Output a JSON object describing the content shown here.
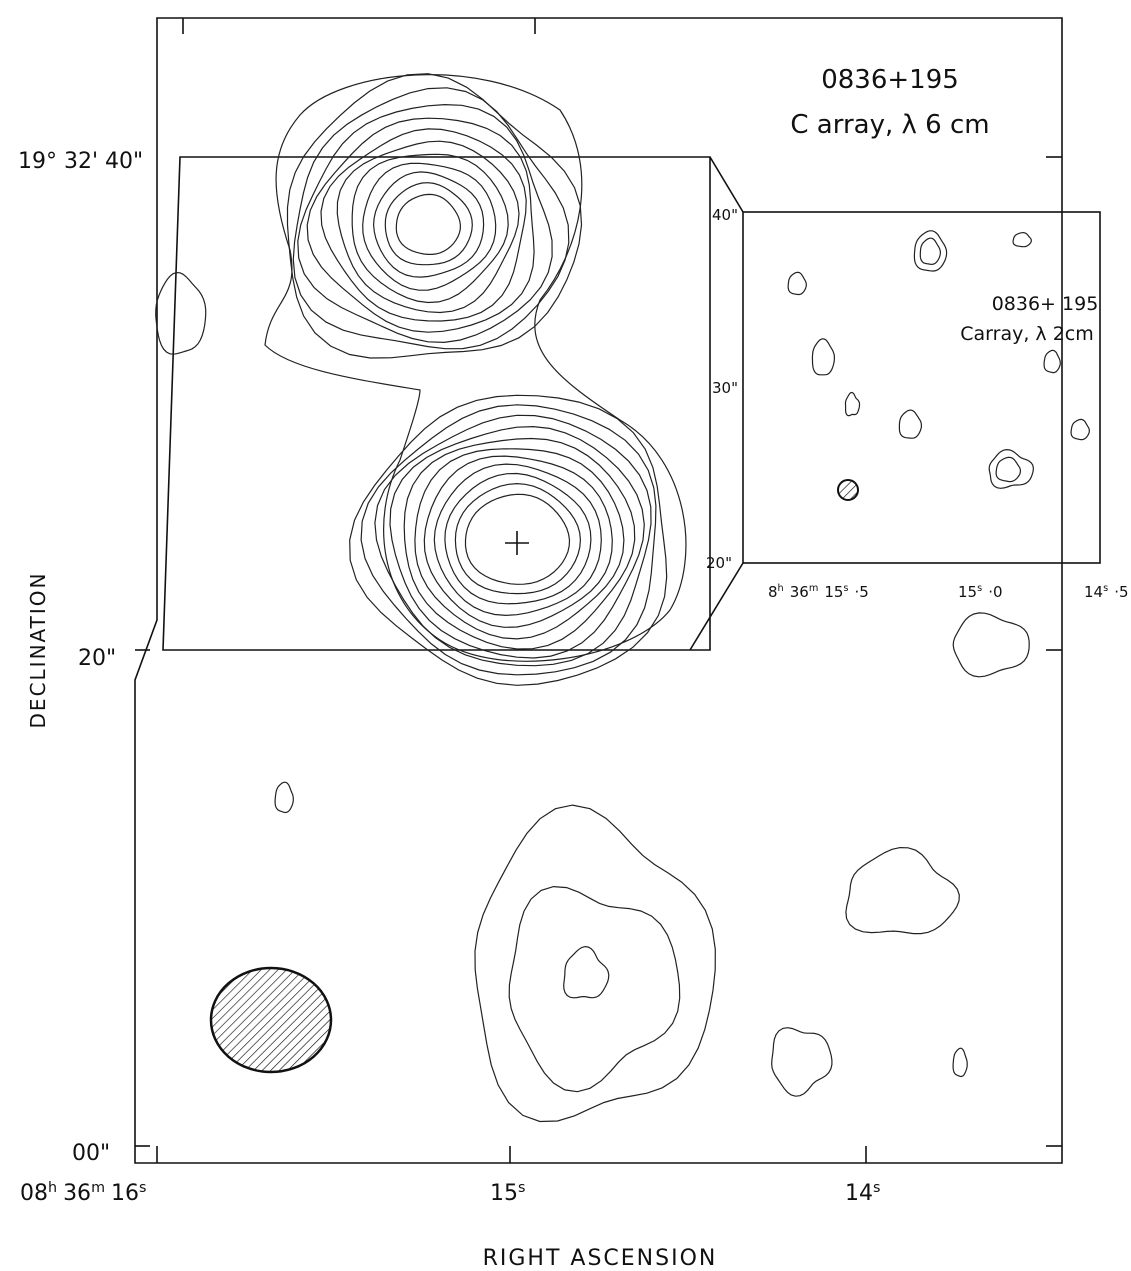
{
  "main_panel": {
    "title": "0836+195",
    "subtitle": "C array, λ 6 cm",
    "y_axis_label": "DECLINATION",
    "x_axis_label": "RIGHT ASCENSION",
    "dec_labels": [
      "19° 32' 40\"",
      "20\"",
      "00\""
    ],
    "ra_labels": [
      [
        [
          "08",
          "h"
        ],
        [
          "36",
          "m"
        ],
        [
          "16",
          "s"
        ]
      ],
      [
        [
          "15",
          "s"
        ]
      ],
      [
        [
          "14",
          "s"
        ]
      ]
    ]
  },
  "inset_panel": {
    "title": "0836+ 195",
    "subtitle": "Carray, λ 2cm",
    "dec_labels": [
      "40\"",
      "30\"",
      "20\""
    ],
    "ra_labels": [
      [
        [
          "8",
          "h"
        ],
        [
          "36",
          "m"
        ],
        [
          "15",
          "s"
        ],
        [
          "·5"
        ]
      ],
      [
        [
          "15",
          "s"
        ],
        [
          "·0"
        ]
      ],
      [
        [
          "14",
          "s"
        ],
        [
          "·5"
        ]
      ]
    ]
  }
}
